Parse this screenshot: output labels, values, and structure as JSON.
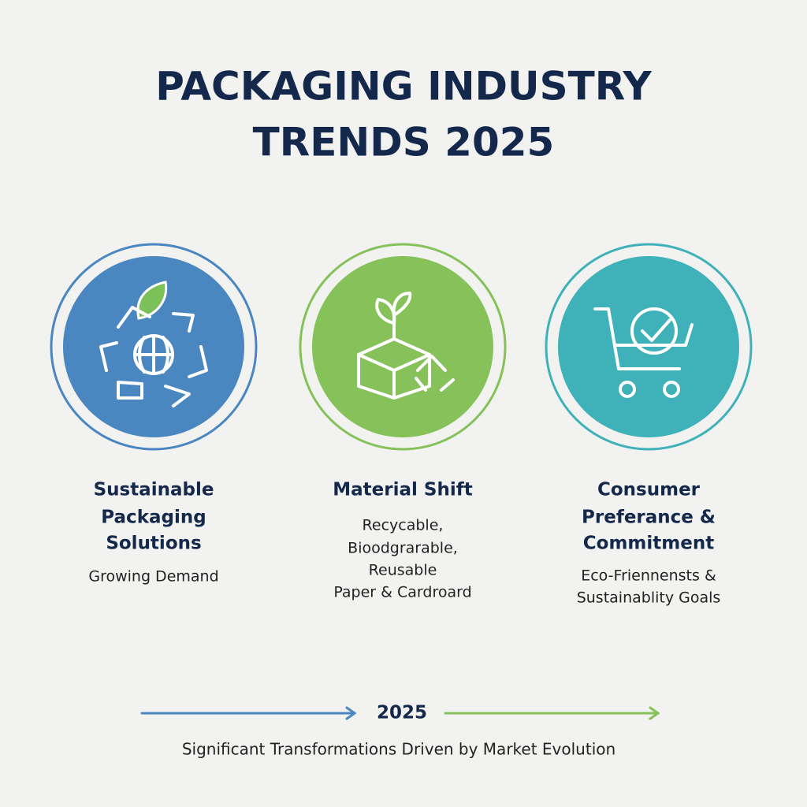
{
  "header": {
    "title_lines": [
      "PACKAGING INDUSTRY",
      "TRENDS 2025"
    ]
  },
  "items": [
    {
      "title_lines": [
        "Sustainable",
        "Packaging",
        "Solutions"
      ],
      "description_lines": [
        "Growing Demand"
      ]
    },
    {
      "title_lines": [
        "Material Shift"
      ],
      "description_lines": [
        "Recycable,",
        "Bioodgrarable,",
        "Reusable",
        "Paper & Cardroard"
      ]
    },
    {
      "title_lines": [
        "Consumer",
        "Preferance &",
        "Commitment"
      ],
      "description_lines": [
        "Eco-Friennensts &",
        "Sustainablity Goals"
      ]
    }
  ],
  "timeline": {
    "label": "2025"
  },
  "footer": {
    "text": "Significant Transformations Driven by Market Evolution"
  }
}
